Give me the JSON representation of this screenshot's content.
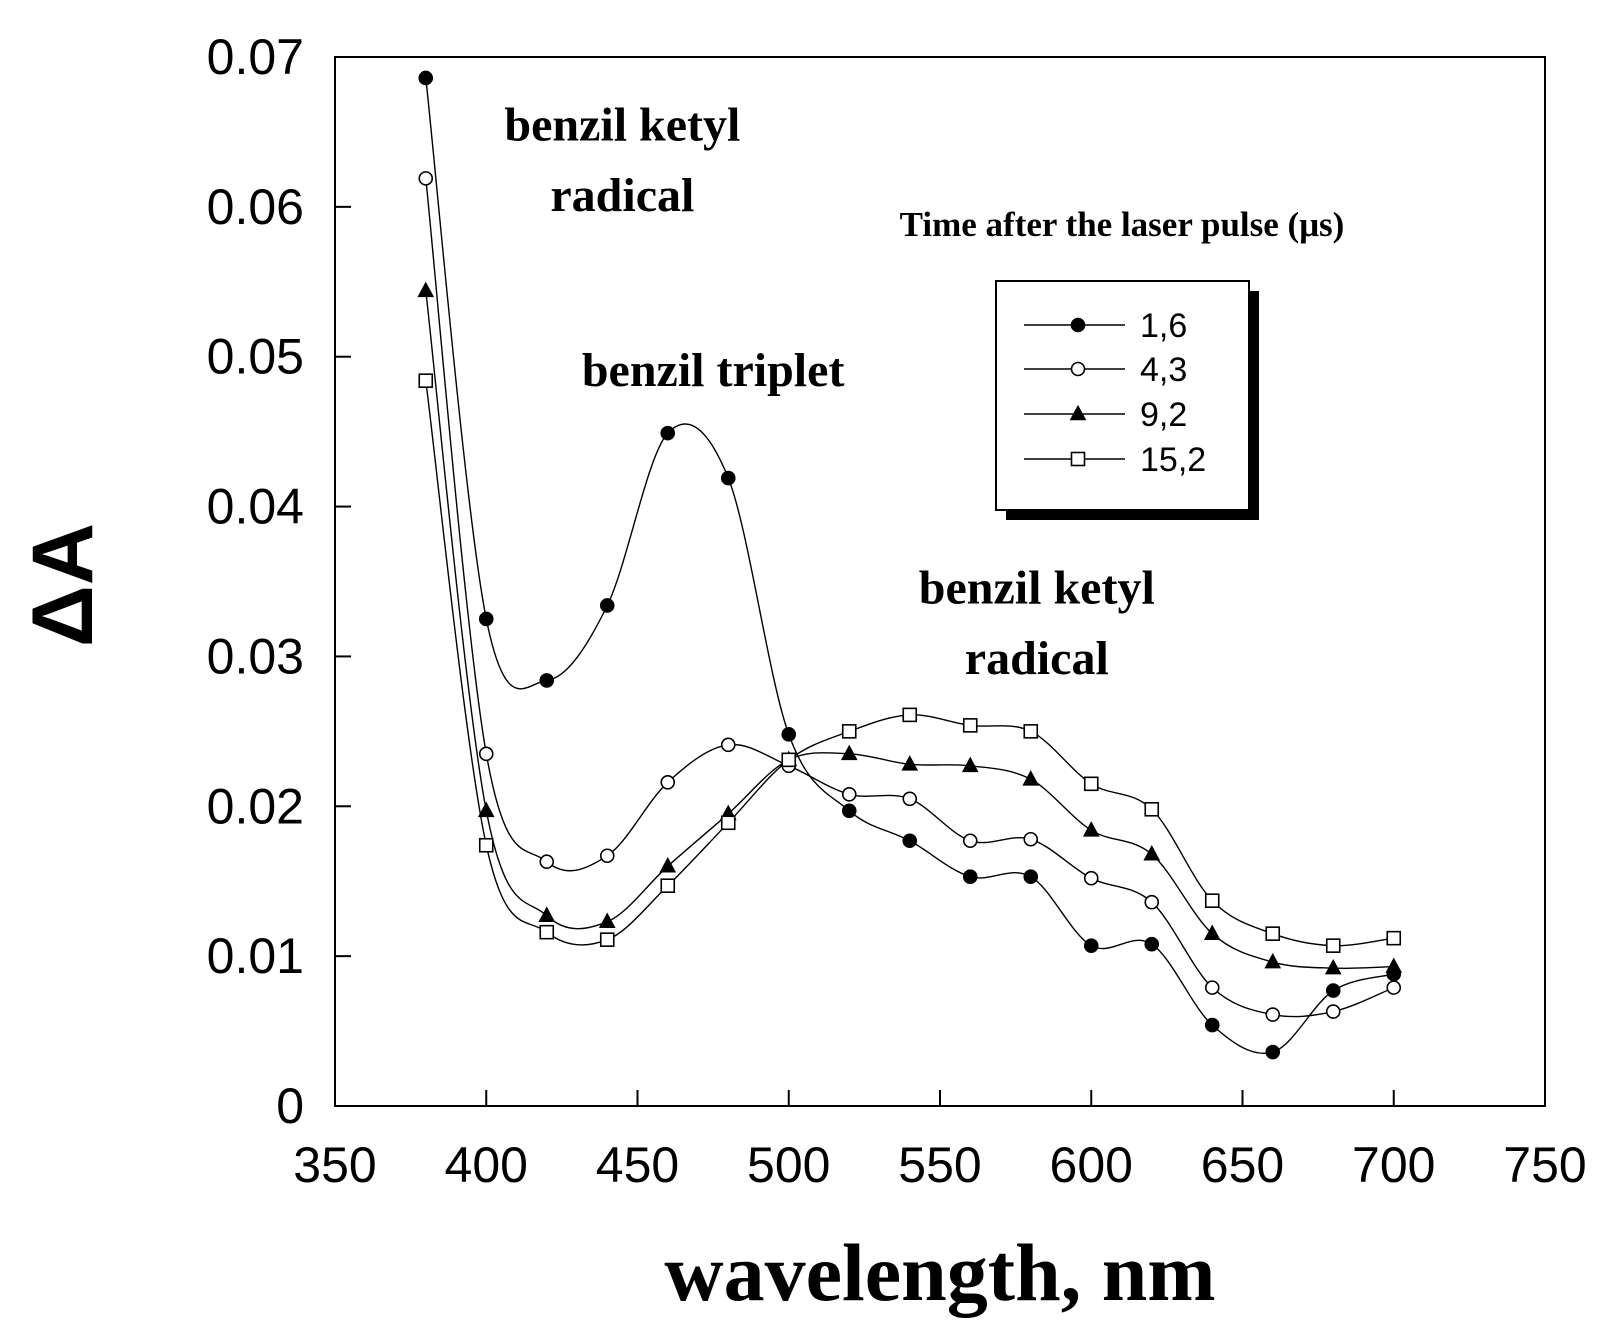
{
  "chart_data": {
    "type": "line",
    "title": "",
    "xlabel": "wavelength, nm",
    "ylabel": "ΔA",
    "xlim": [
      350,
      750
    ],
    "ylim": [
      0,
      0.07
    ],
    "xticks": [
      350,
      400,
      450,
      500,
      550,
      600,
      650,
      700,
      750
    ],
    "xtick_labels": [
      "350",
      "400",
      "450",
      "500",
      "550",
      "600",
      "650",
      "700",
      "750"
    ],
    "yticks": [
      0,
      0.01,
      0.02,
      0.03,
      0.04,
      0.05,
      0.06,
      0.07
    ],
    "ytick_labels": [
      "0",
      "0.01",
      "0.02",
      "0.03",
      "0.04",
      "0.05",
      "0.06",
      "0.07"
    ],
    "grid": false,
    "x": [
      380,
      400,
      420,
      440,
      460,
      480,
      500,
      520,
      540,
      560,
      580,
      600,
      620,
      640,
      660,
      680,
      700
    ],
    "series": [
      {
        "name": "1,6",
        "marker": "filled-circle",
        "values": [
          0.0686,
          0.0325,
          0.0284,
          0.0334,
          0.0449,
          0.0419,
          0.0248,
          0.0197,
          0.0177,
          0.0153,
          0.0153,
          0.0107,
          0.0108,
          0.0054,
          0.0036,
          0.0077,
          0.0088
        ]
      },
      {
        "name": "4,3",
        "marker": "open-circle",
        "values": [
          0.0619,
          0.0235,
          0.0163,
          0.0167,
          0.0216,
          0.0241,
          0.0227,
          0.0208,
          0.0205,
          0.0177,
          0.0178,
          0.0152,
          0.0136,
          0.0079,
          0.0061,
          0.0063,
          0.0079
        ]
      },
      {
        "name": "9,2",
        "marker": "filled-triangle",
        "values": [
          0.0544,
          0.0197,
          0.0127,
          0.0123,
          0.016,
          0.0195,
          0.0231,
          0.0235,
          0.0228,
          0.0227,
          0.0218,
          0.0184,
          0.0168,
          0.0115,
          0.0096,
          0.0092,
          0.0093
        ]
      },
      {
        "name": "15,2",
        "marker": "open-square",
        "values": [
          0.0484,
          0.0174,
          0.0116,
          0.0111,
          0.0147,
          0.0189,
          0.0231,
          0.025,
          0.0261,
          0.0254,
          0.025,
          0.0215,
          0.0198,
          0.0137,
          0.0115,
          0.0107,
          0.0112
        ]
      }
    ],
    "legend": {
      "title": "Time after the laser pulse (μs)",
      "placement": "top-right",
      "entries": [
        "1,6",
        "4,3",
        "9,2",
        "15,2"
      ]
    },
    "annotations": [
      {
        "text": "benzil ketyl",
        "x": 445,
        "y": 0.0655
      },
      {
        "text": "radical",
        "x": 445,
        "y": 0.0608
      },
      {
        "text": "benzil triplet",
        "x": 475,
        "y": 0.0491
      },
      {
        "text": "benzil ketyl",
        "x": 582,
        "y": 0.0346
      },
      {
        "text": "radical",
        "x": 582,
        "y": 0.0299
      }
    ]
  }
}
